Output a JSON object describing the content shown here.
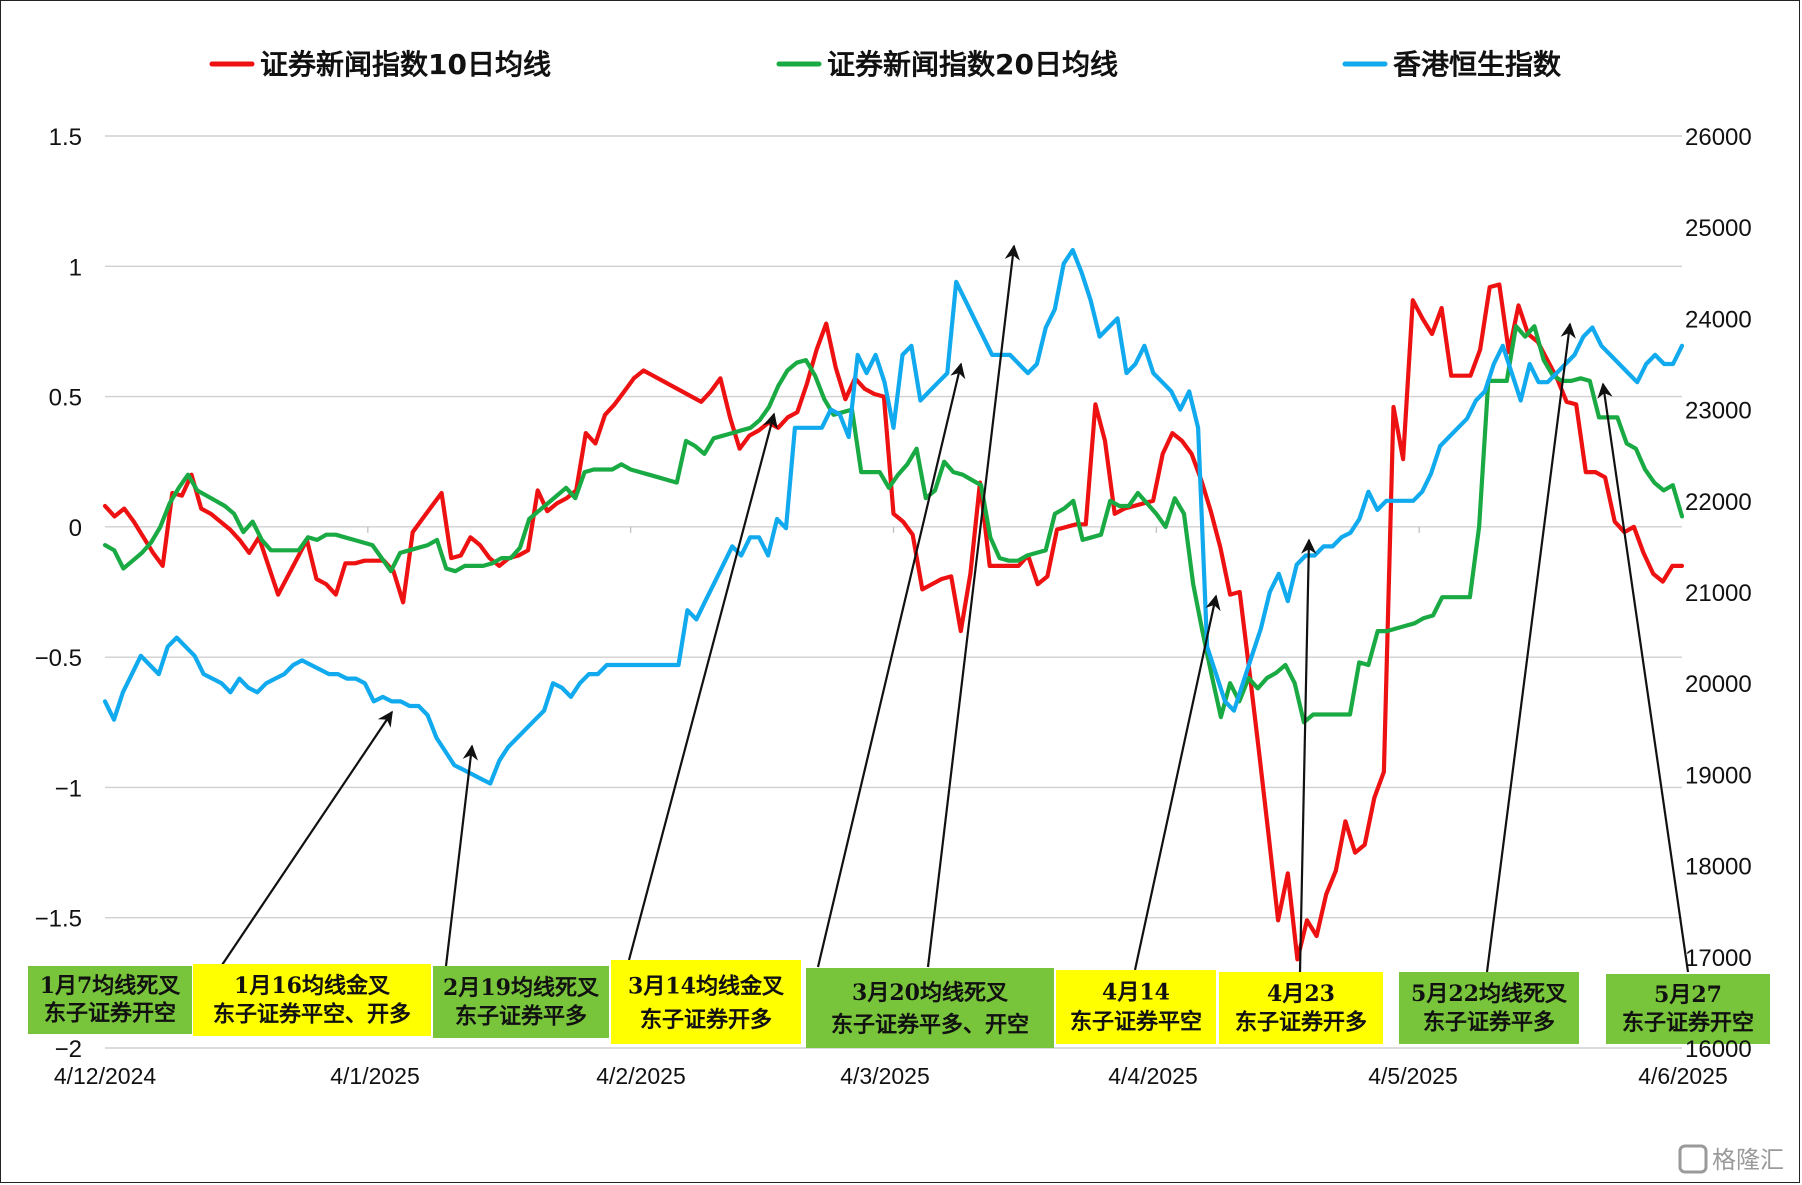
{
  "chart_data": {
    "type": "line",
    "title": "",
    "left_axis": {
      "min": -2,
      "max": 1.5,
      "ticks": [
        1.5,
        1,
        0.5,
        0,
        -0.5,
        -1,
        -1.5,
        -2
      ]
    },
    "right_axis": {
      "min": 16000,
      "max": 26000,
      "ticks": [
        26000,
        25000,
        24000,
        23000,
        22000,
        21000,
        20000,
        19000,
        18000,
        17000,
        16000
      ]
    },
    "x_labels": [
      "4/12/2024",
      "4/1/2025",
      "4/2/2025",
      "4/3/2025",
      "4/4/2025",
      "4/5/2025",
      "4/6/2025"
    ],
    "grid": true,
    "legend_position": "top",
    "series": [
      {
        "name": "证券新闻指数10日均线",
        "axis": "left",
        "color": "#ee1111",
        "values": [
          0.08,
          0.04,
          0.07,
          0.02,
          -0.04,
          -0.1,
          -0.15,
          0.13,
          0.12,
          0.2,
          0.07,
          0.05,
          0.02,
          -0.01,
          -0.05,
          -0.1,
          -0.04,
          -0.15,
          -0.26,
          -0.19,
          -0.12,
          -0.05,
          -0.2,
          -0.22,
          -0.26,
          -0.14,
          -0.14,
          -0.13,
          -0.13,
          -0.13,
          -0.17,
          -0.29,
          -0.02,
          0.03,
          0.08,
          0.13,
          -0.12,
          -0.11,
          -0.04,
          -0.07,
          -0.12,
          -0.15,
          -0.12,
          -0.11,
          -0.09,
          0.14,
          0.06,
          0.09,
          0.11,
          0.14,
          0.36,
          0.32,
          0.43,
          0.47,
          0.52,
          0.57,
          0.6,
          0.58,
          0.56,
          0.54,
          0.52,
          0.5,
          0.48,
          0.52,
          0.57,
          0.42,
          0.3,
          0.35,
          0.37,
          0.4,
          0.38,
          0.42,
          0.44,
          0.55,
          0.68,
          0.78,
          0.61,
          0.49,
          0.57,
          0.53,
          0.51,
          0.5,
          0.05,
          0.02,
          -0.03,
          -0.24,
          -0.22,
          -0.2,
          -0.19,
          -0.4,
          -0.18,
          0.17,
          -0.15,
          -0.15,
          -0.15,
          -0.15,
          -0.11,
          -0.22,
          -0.19,
          -0.01,
          0.0,
          0.01,
          0.01,
          0.47,
          0.33,
          0.05,
          0.07,
          0.08,
          0.09,
          0.1,
          0.28,
          0.36,
          0.33,
          0.28,
          0.18,
          0.06,
          -0.08,
          -0.26,
          -0.25,
          -0.55,
          -0.86,
          -1.18,
          -1.51,
          -1.33,
          -1.66,
          -1.51,
          -1.57,
          -1.41,
          -1.32,
          -1.13,
          -1.25,
          -1.22,
          -1.04,
          -0.94,
          0.46,
          0.26,
          0.87,
          0.8,
          0.74,
          0.84,
          0.58,
          0.58,
          0.58,
          0.68,
          0.92,
          0.93,
          0.67,
          0.85,
          0.74,
          0.71,
          0.64,
          0.57,
          0.48,
          0.47,
          0.21,
          0.21,
          0.19,
          0.02,
          -0.02,
          0.0,
          -0.1,
          -0.18,
          -0.21,
          -0.15,
          -0.15
        ]
      },
      {
        "name": "证券新闻指数20日均线",
        "axis": "left",
        "color": "#1aaa44",
        "values": [
          -0.07,
          -0.09,
          -0.16,
          -0.13,
          -0.1,
          -0.06,
          0.0,
          0.09,
          0.15,
          0.2,
          0.14,
          0.12,
          0.1,
          0.08,
          0.05,
          -0.02,
          0.02,
          -0.05,
          -0.09,
          -0.09,
          -0.09,
          -0.09,
          -0.04,
          -0.05,
          -0.03,
          -0.03,
          -0.04,
          -0.05,
          -0.06,
          -0.07,
          -0.12,
          -0.17,
          -0.1,
          -0.09,
          -0.08,
          -0.07,
          -0.05,
          -0.16,
          -0.17,
          -0.15,
          -0.15,
          -0.15,
          -0.14,
          -0.12,
          -0.12,
          -0.08,
          0.03,
          0.06,
          0.09,
          0.12,
          0.15,
          0.11,
          0.21,
          0.22,
          0.22,
          0.22,
          0.24,
          0.22,
          0.21,
          0.2,
          0.19,
          0.18,
          0.17,
          0.33,
          0.31,
          0.28,
          0.34,
          0.35,
          0.36,
          0.37,
          0.38,
          0.41,
          0.46,
          0.54,
          0.6,
          0.63,
          0.64,
          0.58,
          0.49,
          0.43,
          0.44,
          0.45,
          0.21,
          0.21,
          0.21,
          0.15,
          0.2,
          0.24,
          0.3,
          0.11,
          0.14,
          0.25,
          0.21,
          0.2,
          0.18,
          0.16,
          -0.04,
          -0.12,
          -0.13,
          -0.13,
          -0.11,
          -0.1,
          -0.09,
          0.05,
          0.07,
          0.1,
          -0.05,
          -0.04,
          -0.03,
          0.1,
          0.08,
          0.08,
          0.13,
          0.09,
          0.05,
          0.0,
          0.11,
          0.05,
          -0.22,
          -0.4,
          -0.57,
          -0.73,
          -0.6,
          -0.67,
          -0.58,
          -0.62,
          -0.58,
          -0.56,
          -0.53,
          -0.6,
          -0.75,
          -0.72,
          -0.72,
          -0.72,
          -0.72,
          -0.72,
          -0.52,
          -0.53,
          -0.4,
          -0.4,
          -0.39,
          -0.38,
          -0.37,
          -0.35,
          -0.34,
          -0.27,
          -0.27,
          -0.27,
          -0.27,
          0.0,
          0.56,
          0.56,
          0.56,
          0.77,
          0.73,
          0.77,
          0.64,
          0.58,
          0.56,
          0.56,
          0.57,
          0.56,
          0.42,
          0.42,
          0.42,
          0.32,
          0.3,
          0.22,
          0.17,
          0.14,
          0.16,
          0.04
        ]
      },
      {
        "name": "香港恒生指数",
        "axis": "right",
        "color": "#11aaee",
        "values": [
          19800,
          19600,
          19900,
          20100,
          20300,
          20200,
          20100,
          20400,
          20500,
          20400,
          20300,
          20100,
          20050,
          20000,
          19900,
          20050,
          19950,
          19900,
          20000,
          20050,
          20100,
          20200,
          20250,
          20200,
          20150,
          20100,
          20100,
          20050,
          20050,
          20000,
          19800,
          19850,
          19800,
          19800,
          19750,
          19750,
          19650,
          19400,
          19250,
          19100,
          19050,
          19000,
          18950,
          18900,
          19150,
          19300,
          19400,
          19500,
          19600,
          19700,
          20000,
          19950,
          19850,
          20000,
          20100,
          20100,
          20200,
          20200,
          20200,
          20200,
          20200,
          20200,
          20200,
          20200,
          20200,
          20800,
          20700,
          20900,
          21100,
          21300,
          21500,
          21400,
          21600,
          21600,
          21400,
          21800,
          21700,
          22800,
          22800,
          22800,
          22800,
          23000,
          22950,
          22700,
          23600,
          23400,
          23600,
          23300,
          22800,
          23600,
          23700,
          23100,
          23200,
          23300,
          23400,
          24400,
          24200,
          24000,
          23800,
          23600,
          23600,
          23600,
          23500,
          23400,
          23500,
          23900,
          24100,
          24600,
          24750,
          24500,
          24200,
          23800,
          23900,
          24000,
          23400,
          23500,
          23700,
          23400,
          23300,
          23200,
          23000,
          23200,
          22800,
          20400,
          20100,
          19800,
          19700,
          20000,
          20300,
          20600,
          21000,
          21200,
          20900,
          21300,
          21400,
          21400,
          21500,
          21500,
          21600,
          21650,
          21800,
          22100,
          21900,
          22000,
          22000,
          22000,
          22000,
          22100,
          22300,
          22600,
          22700,
          22800,
          22900,
          23100,
          23200,
          23500,
          23700,
          23400,
          23100,
          23500,
          23300,
          23300,
          23400,
          23500,
          23600,
          23800,
          23900,
          23700,
          23600,
          23500,
          23400,
          23300,
          23500,
          23600,
          23500,
          23500,
          23700
        ]
      }
    ],
    "annotations": [
      {
        "line1": "1月7均线死叉",
        "line2": "东子证券开空",
        "bg": "#78c43a"
      },
      {
        "line1": "1月16均线金叉",
        "line2": "东子证券平空、开多",
        "bg": "#ffff00"
      },
      {
        "line1": "2月19均线死叉",
        "line2": "东子证券平多",
        "bg": "#78c43a"
      },
      {
        "line1": "3月14均线金叉",
        "line2": "东子证券开多",
        "bg": "#ffff00"
      },
      {
        "line1": "3月20均线死叉",
        "line2": "东子证券平多、开空",
        "bg": "#78c43a"
      },
      {
        "line1": "4月14",
        "line2": "东子证券平空",
        "bg": "#ffff00"
      },
      {
        "line1": "4月23",
        "line2": "东子证券开多",
        "bg": "#ffff00"
      },
      {
        "line1": "5月22均线死叉",
        "line2": "东子证券平多",
        "bg": "#78c43a"
      },
      {
        "line1": "5月27",
        "line2": "东子证券开空",
        "bg": "#78c43a"
      }
    ]
  },
  "watermark": {
    "icon": "watermark-logo-icon",
    "text": "格隆汇"
  }
}
